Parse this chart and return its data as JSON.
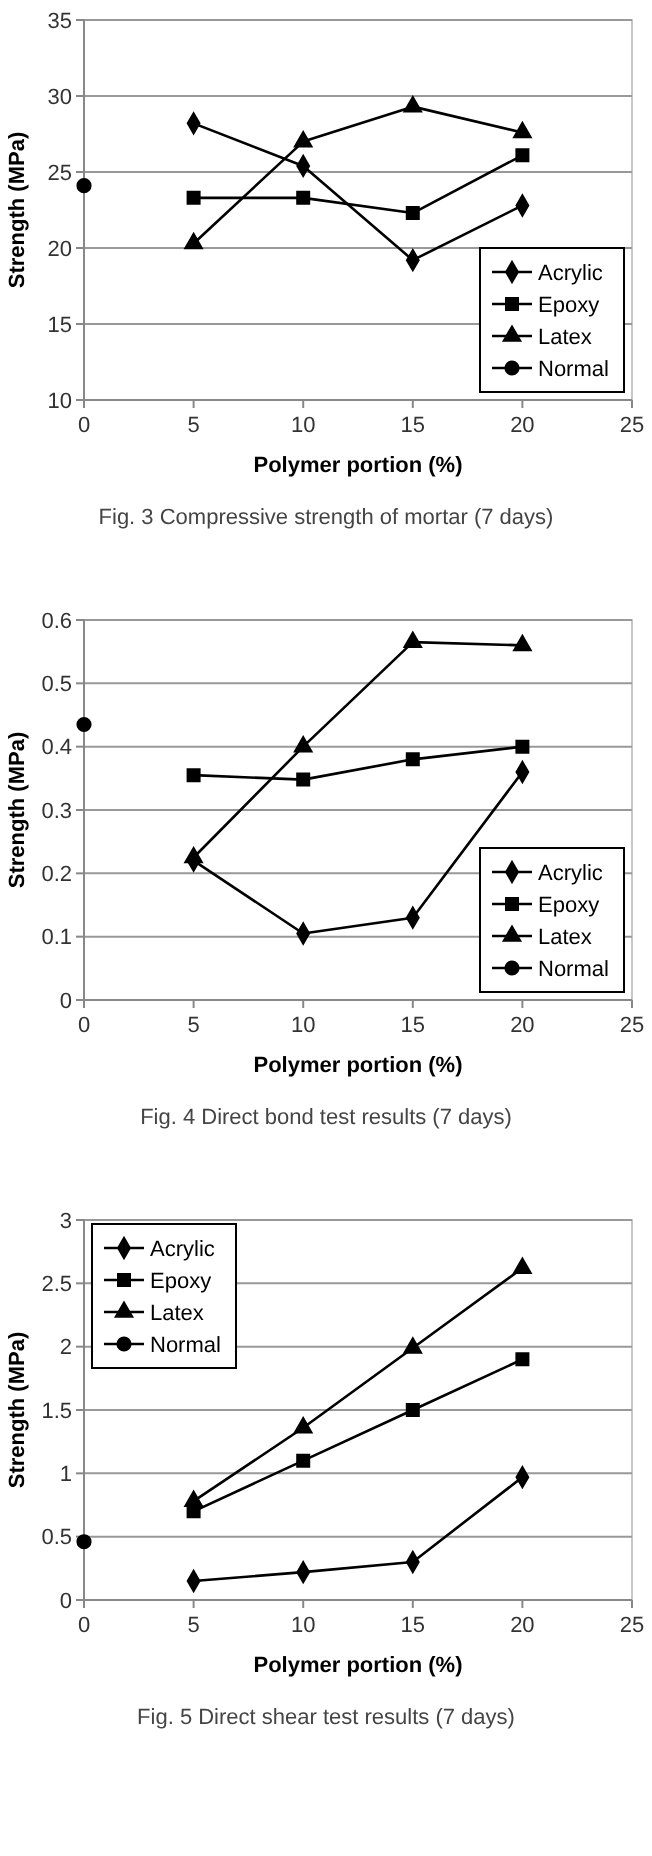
{
  "chart_data": [
    {
      "type": "line",
      "title": "Fig. 3 Compressive strength of mortar (7 days)",
      "xlabel": "Polymer portion (%)",
      "ylabel": "Strength (MPa)",
      "xlim": [
        0,
        25
      ],
      "xticks": [
        0,
        5,
        10,
        15,
        20,
        25
      ],
      "ylim": [
        10,
        35
      ],
      "yticks": [
        10,
        15,
        20,
        25,
        30,
        35
      ],
      "grid": "y",
      "legend": "bottom right",
      "series": [
        {
          "name": "Acrylic",
          "color": "#000000",
          "marker": "diamond",
          "x": [
            5,
            10,
            15,
            20
          ],
          "values": [
            28.2,
            25.4,
            19.2,
            22.8
          ]
        },
        {
          "name": "Epoxy",
          "color": "#000000",
          "marker": "square",
          "x": [
            5,
            10,
            15,
            20
          ],
          "values": [
            23.3,
            23.3,
            22.3,
            26.1
          ]
        },
        {
          "name": "Latex",
          "color": "#000000",
          "marker": "triangle",
          "x": [
            5,
            10,
            15,
            20
          ],
          "values": [
            20.3,
            27.0,
            29.3,
            27.6
          ]
        },
        {
          "name": "Normal",
          "color": "#000000",
          "marker": "circle",
          "x": [
            0
          ],
          "values": [
            24.1
          ]
        }
      ]
    },
    {
      "type": "line",
      "title": "Fig. 4 Direct bond test results (7 days)",
      "xlabel": "Polymer portion (%)",
      "ylabel": "Strength (MPa)",
      "xlim": [
        0,
        25
      ],
      "xticks": [
        0,
        5,
        10,
        15,
        20,
        25
      ],
      "ylim": [
        0,
        0.6
      ],
      "yticks": [
        0,
        0.1,
        0.2,
        0.3,
        0.4,
        0.5,
        0.6
      ],
      "grid": "y",
      "legend": "bottom right",
      "series": [
        {
          "name": "Acrylic",
          "color": "#000000",
          "marker": "diamond",
          "x": [
            5,
            10,
            15,
            20
          ],
          "values": [
            0.22,
            0.105,
            0.13,
            0.36
          ]
        },
        {
          "name": "Epoxy",
          "color": "#000000",
          "marker": "square",
          "x": [
            5,
            10,
            15,
            20
          ],
          "values": [
            0.355,
            0.348,
            0.38,
            0.4
          ]
        },
        {
          "name": "Latex",
          "color": "#000000",
          "marker": "triangle",
          "x": [
            5,
            10,
            15,
            20
          ],
          "values": [
            0.225,
            0.4,
            0.565,
            0.56
          ]
        },
        {
          "name": "Normal",
          "color": "#000000",
          "marker": "circle",
          "x": [
            0
          ],
          "values": [
            0.435
          ]
        }
      ]
    },
    {
      "type": "line",
      "title": "Fig. 5 Direct shear test results (7 days)",
      "xlabel": "Polymer portion (%)",
      "ylabel": "Strength (MPa)",
      "xlim": [
        0,
        25
      ],
      "xticks": [
        0,
        5,
        10,
        15,
        20,
        25
      ],
      "ylim": [
        0,
        3
      ],
      "yticks": [
        0,
        0.5,
        1,
        1.5,
        2,
        2.5,
        3
      ],
      "grid": "y",
      "legend": "top left",
      "series": [
        {
          "name": "Acrylic",
          "color": "#000000",
          "marker": "diamond",
          "x": [
            5,
            10,
            15,
            20
          ],
          "values": [
            0.15,
            0.22,
            0.3,
            0.97
          ]
        },
        {
          "name": "Epoxy",
          "color": "#000000",
          "marker": "square",
          "x": [
            5,
            10,
            15,
            20
          ],
          "values": [
            0.7,
            1.1,
            1.5,
            1.9
          ]
        },
        {
          "name": "Latex",
          "color": "#000000",
          "marker": "triangle",
          "x": [
            5,
            10,
            15,
            20
          ],
          "values": [
            0.78,
            1.36,
            1.99,
            2.62
          ]
        },
        {
          "name": "Normal",
          "color": "#000000",
          "marker": "circle",
          "x": [
            0
          ],
          "values": [
            0.46
          ]
        }
      ]
    }
  ]
}
